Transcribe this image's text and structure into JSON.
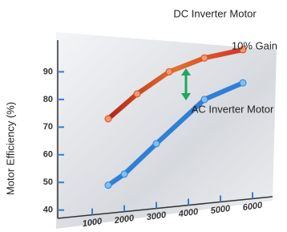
{
  "chart_data": {
    "type": "line",
    "y_label": "Motor Efficiency (%)",
    "annotations": [
      "DC Inverter Motor",
      "10% Gain",
      "AC Inverter Motor"
    ],
    "xlim": [
      625,
      6500
    ],
    "ylim": [
      37,
      100
    ],
    "xticks": [
      1000,
      2000,
      3000,
      4000,
      5000,
      6000
    ],
    "yticks": [
      40,
      50,
      60,
      70,
      80,
      90
    ],
    "series": [
      {
        "name": "DC Inverter Motor",
        "color": "#d94a1e",
        "x": [
          1500,
          2400,
          3400,
          4500,
          5700
        ],
        "values": [
          73,
          82,
          90,
          95,
          98
        ]
      },
      {
        "name": "AC Inverter Motor",
        "color": "#2f7fd6",
        "x": [
          1500,
          2000,
          3000,
          4500,
          5700
        ],
        "values": [
          49,
          53,
          64,
          80,
          86
        ]
      }
    ]
  }
}
